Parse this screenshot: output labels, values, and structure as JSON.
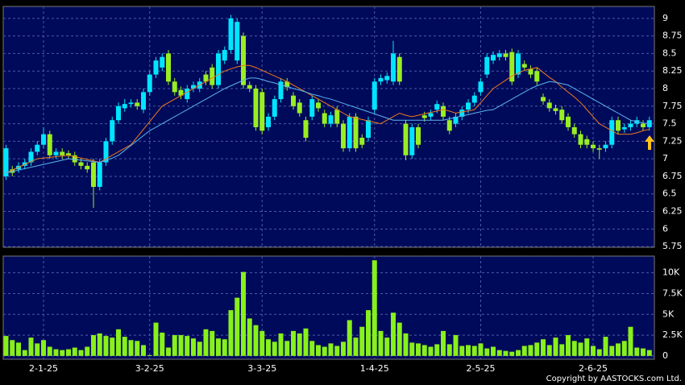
{
  "chart_data": [
    {
      "type": "candlestick",
      "categories": [
        null,
        null,
        null,
        null,
        null,
        null,
        "2-1-25",
        null,
        null,
        null,
        null,
        null,
        null,
        null,
        null,
        null,
        null,
        null,
        null,
        null,
        null,
        null,
        null,
        "3-2-25",
        null,
        null,
        null,
        null,
        null,
        null,
        null,
        null,
        null,
        null,
        null,
        null,
        null,
        null,
        null,
        null,
        null,
        "3-3-25",
        null,
        null,
        null,
        null,
        null,
        null,
        null,
        null,
        null,
        null,
        null,
        null,
        null,
        null,
        null,
        null,
        null,
        "1-4-25",
        null,
        null,
        null,
        null,
        null,
        null,
        null,
        null,
        null,
        null,
        null,
        null,
        null,
        null,
        null,
        null,
        "2-5-25",
        null,
        null,
        null,
        null,
        null,
        null,
        null,
        null,
        null,
        null,
        null,
        null,
        null,
        null,
        null,
        null,
        null,
        "2-6-25",
        null,
        null,
        null,
        null,
        null,
        null,
        null,
        null,
        null
      ],
      "open": [
        6.75,
        6.85,
        6.85,
        6.9,
        6.95,
        7.1,
        7.2,
        7.35,
        7.05,
        7.1,
        7.08,
        7.05,
        6.95,
        6.9,
        6.95,
        6.6,
        6.95,
        7.25,
        7.55,
        7.72,
        7.78,
        7.8,
        7.7,
        7.95,
        8.2,
        8.3,
        8.5,
        8.1,
        7.98,
        7.85,
        8.0,
        8.0,
        8.2,
        8.3,
        8.05,
        8.4,
        8.55,
        8.4,
        8.75,
        8.05,
        8.0,
        7.95,
        7.45,
        7.6,
        7.85,
        8.1,
        7.9,
        7.8,
        7.55,
        7.6,
        7.8,
        7.65,
        7.5,
        7.7,
        7.5,
        7.15,
        7.6,
        7.3,
        7.3,
        7.7,
        8.1,
        8.12,
        8.1,
        8.45,
        7.5,
        7.05,
        7.45,
        7.62,
        7.6,
        7.7,
        7.75,
        7.55,
        7.5,
        7.6,
        7.7,
        7.8,
        7.95,
        8.2,
        8.4,
        8.45,
        8.5,
        8.52,
        8.2,
        8.35,
        8.28,
        8.25,
        7.88,
        7.8,
        7.72,
        7.7,
        7.6,
        7.45,
        7.35,
        7.28,
        7.2,
        7.15,
        7.15,
        7.2,
        7.55,
        7.42,
        7.45,
        7.5,
        7.5,
        7.45
      ],
      "high": [
        7.2,
        6.9,
        6.95,
        7.0,
        7.15,
        7.25,
        7.45,
        7.4,
        7.15,
        7.15,
        7.12,
        7.1,
        7.0,
        6.95,
        7.0,
        7.0,
        7.3,
        7.6,
        7.8,
        7.85,
        7.85,
        7.85,
        8.0,
        8.25,
        8.45,
        8.5,
        8.55,
        8.15,
        8.03,
        8.05,
        8.1,
        8.15,
        8.25,
        8.35,
        8.55,
        8.6,
        9.05,
        9.0,
        8.8,
        8.1,
        8.05,
        8.0,
        7.65,
        7.9,
        8.15,
        8.15,
        7.95,
        7.85,
        7.6,
        7.9,
        7.85,
        7.7,
        7.67,
        7.75,
        7.55,
        7.65,
        7.65,
        7.35,
        7.6,
        8.15,
        8.2,
        8.23,
        8.68,
        8.5,
        7.55,
        7.5,
        7.5,
        7.67,
        7.7,
        7.83,
        7.8,
        7.6,
        7.65,
        7.75,
        7.85,
        7.95,
        8.15,
        8.5,
        8.53,
        8.55,
        8.55,
        8.57,
        8.55,
        8.4,
        8.33,
        8.3,
        7.93,
        7.85,
        7.77,
        7.75,
        7.65,
        7.5,
        7.4,
        7.33,
        7.25,
        7.2,
        7.25,
        7.6,
        7.6,
        7.5,
        7.55,
        7.6,
        7.55,
        7.6
      ],
      "low": [
        6.7,
        6.75,
        6.8,
        6.85,
        6.9,
        7.05,
        7.15,
        7.0,
        7.0,
        7.0,
        7.0,
        6.9,
        6.85,
        6.8,
        6.3,
        6.55,
        6.9,
        7.2,
        7.5,
        7.67,
        7.73,
        7.7,
        7.65,
        7.9,
        8.15,
        8.25,
        8.05,
        7.9,
        7.85,
        7.8,
        7.95,
        7.95,
        8.05,
        8.0,
        8.0,
        8.35,
        8.5,
        8.35,
        8.0,
        7.95,
        7.4,
        7.35,
        7.4,
        7.55,
        7.8,
        7.97,
        7.7,
        7.6,
        7.25,
        7.55,
        7.67,
        7.45,
        7.45,
        7.45,
        7.1,
        7.1,
        7.1,
        7.15,
        7.25,
        7.65,
        8.05,
        8.07,
        8.05,
        8.05,
        6.98,
        7.0,
        7.15,
        7.53,
        7.55,
        7.65,
        7.55,
        7.35,
        7.45,
        7.55,
        7.65,
        7.75,
        7.9,
        8.15,
        8.35,
        8.4,
        8.4,
        8.05,
        8.15,
        8.25,
        8.15,
        8.05,
        7.77,
        7.67,
        7.63,
        7.5,
        7.4,
        7.3,
        7.15,
        7.15,
        7.1,
        7.0,
        7.1,
        7.15,
        7.35,
        7.37,
        7.4,
        7.45,
        7.4,
        7.4
      ],
      "close": [
        7.15,
        6.8,
        6.9,
        6.95,
        7.1,
        7.2,
        7.35,
        7.05,
        7.1,
        7.05,
        7.05,
        6.95,
        6.9,
        6.85,
        6.6,
        6.95,
        7.25,
        7.55,
        7.75,
        7.78,
        7.8,
        7.75,
        7.95,
        8.2,
        8.4,
        8.45,
        8.1,
        7.95,
        7.9,
        8.0,
        8.05,
        8.1,
        8.1,
        8.05,
        8.5,
        8.55,
        9.0,
        8.95,
        8.05,
        8.0,
        7.45,
        7.4,
        7.6,
        7.85,
        8.1,
        8.02,
        7.75,
        7.65,
        7.3,
        7.85,
        7.72,
        7.5,
        7.62,
        7.5,
        7.15,
        7.6,
        7.15,
        7.2,
        7.55,
        8.1,
        8.15,
        8.18,
        8.5,
        8.1,
        7.05,
        7.45,
        7.2,
        7.58,
        7.65,
        7.78,
        7.6,
        7.4,
        7.6,
        7.7,
        7.8,
        7.9,
        8.1,
        8.45,
        8.48,
        8.5,
        8.45,
        8.1,
        8.5,
        8.3,
        8.2,
        8.1,
        7.82,
        7.72,
        7.68,
        7.55,
        7.45,
        7.35,
        7.2,
        7.2,
        7.15,
        7.13,
        7.2,
        7.55,
        7.4,
        7.45,
        7.5,
        7.55,
        7.45,
        7.55
      ],
      "up_color": "#00e5ff",
      "down_color": "#99ee22",
      "lines": [
        {
          "color": "#f07a1a",
          "values": [
            6.8,
            6.84,
            6.88,
            6.92,
            6.96,
            7.0,
            7.01,
            7.02,
            7.03,
            7.04,
            7.05,
            7.03,
            7.01,
            6.99,
            6.97,
            6.95,
            7.0,
            7.05,
            7.1,
            7.15,
            7.2,
            7.31,
            7.42,
            7.53,
            7.64,
            7.75,
            7.8,
            7.85,
            7.9,
            7.95,
            8.0,
            8.05,
            8.1,
            8.15,
            8.2,
            8.25,
            8.28,
            8.31,
            8.33,
            8.33,
            8.3,
            8.26,
            8.22,
            8.18,
            8.14,
            8.1,
            8.05,
            8.0,
            7.95,
            7.9,
            7.85,
            7.8,
            7.75,
            7.7,
            7.65,
            7.6,
            7.58,
            7.56,
            7.54,
            7.52,
            7.5,
            7.55,
            7.6,
            7.65,
            7.62,
            7.6,
            7.62,
            7.64,
            7.66,
            7.68,
            7.7,
            7.68,
            7.65,
            7.67,
            7.68,
            7.7,
            7.8,
            7.9,
            8.0,
            8.06,
            8.12,
            8.18,
            8.22,
            8.26,
            8.28,
            8.3,
            8.23,
            8.16,
            8.1,
            8.02,
            7.95,
            7.88,
            7.8,
            7.7,
            7.6,
            7.5,
            7.45,
            7.4,
            7.35,
            7.35,
            7.35,
            7.37,
            7.4,
            7.42
          ]
        },
        {
          "color": "#5ab4f0",
          "values": [
            6.8,
            6.82,
            6.84,
            6.86,
            6.88,
            6.9,
            6.92,
            6.94,
            6.96,
            6.98,
            7.0,
            6.99,
            6.98,
            6.97,
            6.96,
            6.95,
            6.98,
            7.01,
            7.05,
            7.12,
            7.19,
            7.26,
            7.33,
            7.4,
            7.45,
            7.5,
            7.55,
            7.6,
            7.65,
            7.7,
            7.75,
            7.8,
            7.85,
            7.9,
            7.95,
            8.0,
            8.04,
            8.08,
            8.12,
            8.15,
            8.15,
            8.13,
            8.1,
            8.08,
            8.05,
            8.03,
            8.0,
            7.98,
            7.95,
            7.92,
            7.9,
            7.87,
            7.85,
            7.82,
            7.79,
            7.76,
            7.73,
            7.7,
            7.67,
            7.64,
            7.61,
            7.58,
            7.55,
            7.55,
            7.55,
            7.55,
            7.55,
            7.55,
            7.55,
            7.55,
            7.55,
            7.57,
            7.59,
            7.61,
            7.63,
            7.65,
            7.67,
            7.69,
            7.7,
            7.75,
            7.8,
            7.85,
            7.9,
            7.95,
            8.0,
            8.04,
            8.07,
            8.1,
            8.09,
            8.07,
            8.05,
            8.0,
            7.95,
            7.9,
            7.85,
            7.8,
            7.75,
            7.7,
            7.65,
            7.6,
            7.55,
            7.53,
            7.51,
            7.5
          ]
        }
      ],
      "ylim": [
        5.74,
        9.17
      ],
      "yticks": [
        5.75,
        6,
        6.25,
        6.5,
        6.75,
        7,
        7.25,
        7.5,
        7.75,
        8,
        8.25,
        8.5,
        8.75,
        9
      ],
      "grid": true
    },
    {
      "type": "bar",
      "values": [
        2400,
        1900,
        1600,
        700,
        2200,
        1500,
        1900,
        1100,
        800,
        700,
        800,
        1000,
        700,
        1100,
        2500,
        2700,
        2400,
        2200,
        3200,
        2300,
        1900,
        1800,
        1300,
        100,
        4000,
        2800,
        1000,
        2500,
        2500,
        2400,
        2100,
        1700,
        3200,
        3000,
        2100,
        2000,
        5500,
        7000,
        10100,
        4500,
        3700,
        3000,
        2000,
        1700,
        2700,
        1800,
        3000,
        2700,
        3300,
        1800,
        1300,
        1100,
        1500,
        1200,
        1700,
        4300,
        2200,
        3500,
        5500,
        11500,
        3000,
        2200,
        5200,
        4000,
        2700,
        1600,
        1500,
        1300,
        1100,
        1400,
        3000,
        1400,
        2500,
        1200,
        1300,
        1200,
        1500,
        900,
        1100,
        700,
        600,
        500,
        700,
        1200,
        1300,
        1600,
        2000,
        1300,
        2200,
        1400,
        2500,
        1800,
        1600,
        2100,
        1200,
        800,
        2300,
        1200,
        1500,
        1800,
        3500,
        1000,
        900,
        700
      ],
      "color": "#88f01a",
      "ylim": [
        -400,
        12000
      ],
      "yticks": [
        0,
        {
          "value": 2500,
          "label": "2.5K"
        },
        {
          "value": 5000,
          "label": "5K"
        },
        {
          "value": 7500,
          "label": "7.5K"
        },
        {
          "value": 10000,
          "label": "10K"
        }
      ],
      "grid": true
    }
  ],
  "copyright": "Copyright by AASTOCKS.com Ltd."
}
